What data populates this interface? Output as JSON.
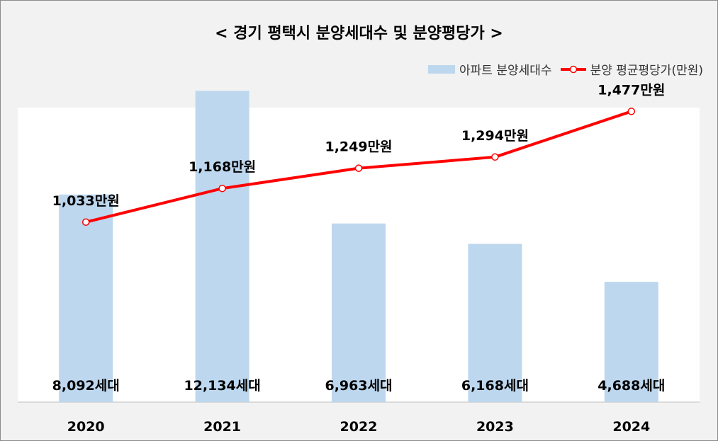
{
  "chart_data": {
    "type": "bar",
    "title": "< 경기 평택시 분양세대수 및 분양평당가 >",
    "categories": [
      "2020",
      "2021",
      "2022",
      "2023",
      "2024"
    ],
    "series": [
      {
        "name": "아파트 분양세대수",
        "type": "bar",
        "values": [
          8092,
          12134,
          6963,
          6168,
          4688
        ],
        "labels": [
          "8,092세대",
          "12,134세대",
          "6,963세대",
          "6,168세대",
          "4,688세대"
        ],
        "color": "#bdd7ee",
        "ylim": [
          0,
          13000
        ]
      },
      {
        "name": "분양 평균평당가(만원)",
        "type": "line",
        "values": [
          1033,
          1168,
          1249,
          1294,
          1477
        ],
        "labels": [
          "1,033만원",
          "1,168만원",
          "1,249만원",
          "1,294만원",
          "1,477만원"
        ],
        "color": "#ff0000",
        "ylim": [
          300,
          1600
        ]
      }
    ],
    "legend_position": "top-right",
    "grid": false
  }
}
